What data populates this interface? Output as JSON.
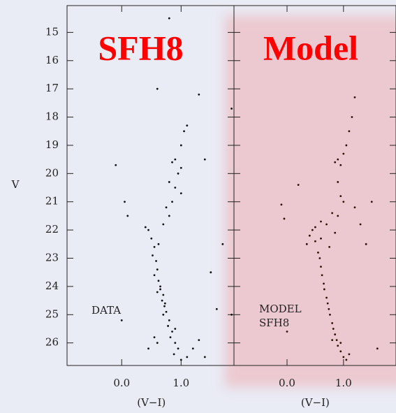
{
  "chart_data": [
    {
      "type": "scatter",
      "title": "SFH8",
      "annotation": "DATA",
      "xlabel": "(V−I)",
      "ylabel": "V",
      "color": "#111111",
      "xlim": [
        -0.92,
        1.89
      ],
      "ylim": [
        26.8,
        14.05
      ],
      "xticks": [
        {
          "value": 0,
          "label": "0.0"
        },
        {
          "value": 1,
          "label": "1.0"
        }
      ],
      "yticks": [
        15,
        16,
        17,
        18,
        19,
        20,
        21,
        22,
        23,
        24,
        25,
        26
      ],
      "x": [
        0.55,
        0.52,
        0.58,
        0.6,
        0.55,
        0.62,
        0.65,
        0.6,
        0.7,
        0.68,
        0.72,
        0.75,
        0.7,
        0.8,
        0.78,
        0.85,
        0.82,
        0.9,
        0.95,
        0.88,
        1.0,
        1.1,
        0.65,
        0.73,
        0.5,
        0.45,
        0.4,
        0.62,
        0.9,
        1.2,
        1.3,
        0.55,
        0.6,
        0.45,
        1.4,
        0.7,
        0.8,
        0.85,
        0.9,
        0.95,
        0.85,
        0.9,
        1.0,
        1.05,
        1.1,
        1.0,
        0.8,
        1.0,
        0.75,
        0.8,
        0.6,
        1.3,
        -0.1,
        0.05,
        0.1,
        1.4,
        1.7,
        1.6,
        0.0,
        1.85,
        1.85,
        1.5
      ],
      "values": [
        22.6,
        22.9,
        23.1,
        23.4,
        23.6,
        23.8,
        24.0,
        24.2,
        24.3,
        24.5,
        24.7,
        24.9,
        25.0,
        25.2,
        25.4,
        25.6,
        25.8,
        26.0,
        26.2,
        26.4,
        26.6,
        26.5,
        24.1,
        24.6,
        22.3,
        22.0,
        21.9,
        22.5,
        25.5,
        26.2,
        25.9,
        25.8,
        26.0,
        26.2,
        26.5,
        21.8,
        21.5,
        21.0,
        20.5,
        20.0,
        19.6,
        19.5,
        19.0,
        18.5,
        18.3,
        19.8,
        20.3,
        20.7,
        21.2,
        14.5,
        17.0,
        17.2,
        19.7,
        21.0,
        21.5,
        19.5,
        22.5,
        24.8,
        25.2,
        17.7,
        25.0,
        23.5
      ]
    },
    {
      "type": "scatter",
      "title": "Model",
      "annotation": [
        "MODEL",
        "SFH8"
      ],
      "xlabel": "(V−I)",
      "color": "#2a1208",
      "xlim": [
        -0.94,
        1.93
      ],
      "ylim": [
        26.8,
        14.05
      ],
      "xticks": [
        {
          "value": 0,
          "label": "0.0"
        },
        {
          "value": 1,
          "label": "1.0"
        }
      ],
      "yticks": [
        15,
        16,
        17,
        18,
        19,
        20,
        21,
        22,
        23,
        24,
        25,
        26
      ],
      "x": [
        0.5,
        0.55,
        0.58,
        0.6,
        0.62,
        0.65,
        0.66,
        0.7,
        0.72,
        0.74,
        0.76,
        0.8,
        0.82,
        0.85,
        0.88,
        0.9,
        0.95,
        1.0,
        1.05,
        1.1,
        0.95,
        0.8,
        0.45,
        0.4,
        0.35,
        0.5,
        0.7,
        0.9,
        1.2,
        1.3,
        0.6,
        0.75,
        0.85,
        1.0,
        0.9,
        0.85,
        0.9,
        0.95,
        1.0,
        1.05,
        1.1,
        1.15,
        1.2,
        0.95,
        0.8,
        0.6,
        0.2,
        -0.1,
        -0.05,
        1.5,
        1.4,
        0.0,
        1.6
      ],
      "values": [
        22.4,
        22.8,
        23.0,
        23.3,
        23.6,
        23.9,
        24.1,
        24.4,
        24.6,
        24.8,
        25.0,
        25.3,
        25.5,
        25.7,
        25.9,
        26.1,
        26.3,
        26.5,
        26.6,
        26.4,
        26.0,
        25.9,
        22.0,
        22.2,
        22.5,
        21.9,
        21.8,
        21.5,
        21.2,
        21.8,
        22.3,
        22.6,
        22.1,
        21.0,
        20.3,
        19.6,
        19.5,
        19.7,
        19.3,
        19.0,
        18.5,
        18.0,
        17.3,
        20.8,
        21.4,
        21.7,
        20.4,
        21.1,
        21.6,
        21.0,
        22.5,
        25.6,
        26.2
      ]
    }
  ]
}
